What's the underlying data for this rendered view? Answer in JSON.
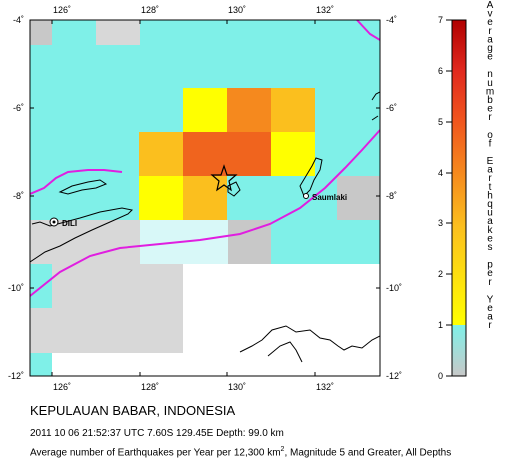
{
  "map": {
    "lon_ticks": [
      {
        "label": "126˚",
        "value": 126
      },
      {
        "label": "128˚",
        "value": 128
      },
      {
        "label": "130˚",
        "value": 130
      },
      {
        "label": "132˚",
        "value": 132
      }
    ],
    "lat_ticks": [
      {
        "label": "-4˚",
        "value": -4
      },
      {
        "label": "-6˚",
        "value": -6
      },
      {
        "label": "-8˚",
        "value": -8
      },
      {
        "label": "-10˚",
        "value": -10
      },
      {
        "label": "-12˚",
        "value": -12
      }
    ],
    "places": {
      "dili": "DILI",
      "saumlaki": "Saumlaki"
    },
    "colors": {
      "grid_0": "#c8c8c8",
      "grid_low": "#d8d8d8",
      "grid_cyan": "#7ff0e8",
      "grid_yellow": "#ffff00",
      "grid_orange_light": "#fbbf1e",
      "grid_orange": "#f5891e",
      "grid_red_orange": "#f0641e",
      "plate_boundary": "#e01ee0"
    }
  },
  "colorbar": {
    "title": "Average number of Earthquakes per Year",
    "tick_labels": [
      "0",
      "1",
      "2",
      "3",
      "4",
      "5",
      "6",
      "7"
    ]
  },
  "caption": {
    "title": "KEPULAUAN BABAR, INDONESIA",
    "event": "2011 10 06 21:52:37 UTC 7.60S 129.45E Depth: 99.0 km",
    "desc_prefix": "Average number of Earthquakes per Year per 12,300 km",
    "desc_sup": "2",
    "desc_suffix": ", Magnitude 5 and Greater, All Depths"
  }
}
